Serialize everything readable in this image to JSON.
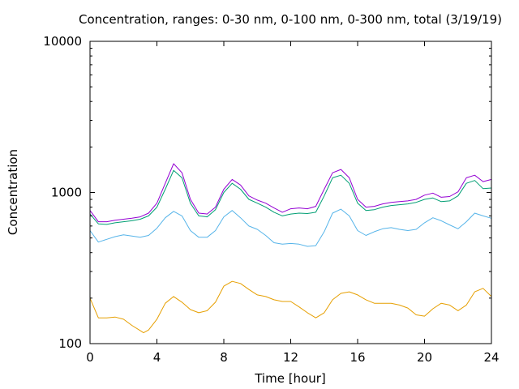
{
  "chart_data": {
    "type": "line",
    "title": "Concentration, ranges: 0-30 nm, 0-100 nm, 0-300 nm, total (3/19/19)",
    "xlabel": "Time [hour]",
    "ylabel": "Concentration",
    "xlim": [
      0,
      24
    ],
    "ylim": [
      100,
      10000
    ],
    "yscale": "log",
    "grid": false,
    "legend": "none",
    "xticks": [
      0,
      4,
      8,
      12,
      16,
      20,
      24
    ],
    "xtick_labels": [
      "0",
      "4",
      "8",
      "12",
      "16",
      "20",
      "24"
    ],
    "yticks": [
      100,
      1000,
      10000
    ],
    "ytick_labels": [
      "100",
      "1000",
      "10000"
    ],
    "series": [
      {
        "color": "#e69f00",
        "x": [
          0,
          0.5,
          1,
          1.5,
          2,
          2.5,
          3,
          3.2,
          3.5,
          4,
          4.5,
          5,
          5.5,
          6,
          6.5,
          7,
          7.5,
          8,
          8.5,
          9,
          9.5,
          10,
          10.5,
          11,
          11.5,
          12,
          12.5,
          13,
          13.5,
          14,
          14.5,
          15,
          15.5,
          16,
          16.5,
          17,
          17.5,
          18,
          18.5,
          19,
          19.5,
          20,
          20.5,
          21,
          21.5,
          22,
          22.5,
          23,
          23.5,
          24
        ],
        "y": [
          200,
          148,
          148,
          150,
          145,
          132,
          122,
          118,
          123,
          145,
          185,
          205,
          188,
          168,
          160,
          165,
          188,
          240,
          258,
          250,
          228,
          210,
          205,
          195,
          190,
          190,
          175,
          160,
          148,
          160,
          195,
          215,
          220,
          210,
          195,
          185,
          185,
          185,
          180,
          172,
          155,
          152,
          170,
          185,
          180,
          165,
          180,
          220,
          232,
          205
        ]
      },
      {
        "color": "#56b4e9",
        "x": [
          0,
          0.5,
          1,
          1.5,
          2,
          2.5,
          3,
          3.5,
          4,
          4.5,
          5,
          5.5,
          6,
          6.5,
          7,
          7.5,
          8,
          8.5,
          9,
          9.5,
          10,
          10.5,
          11,
          11.5,
          12,
          12.5,
          13,
          13.5,
          14,
          14.5,
          15,
          15.5,
          16,
          16.5,
          17,
          17.5,
          18,
          18.5,
          19,
          19.5,
          20,
          20.5,
          21,
          21.5,
          22,
          22.5,
          23,
          23.5,
          24
        ],
        "y": [
          560,
          470,
          490,
          510,
          525,
          515,
          505,
          520,
          580,
          680,
          750,
          700,
          560,
          505,
          505,
          560,
          690,
          760,
          680,
          600,
          570,
          520,
          465,
          455,
          460,
          455,
          440,
          445,
          550,
          730,
          775,
          700,
          560,
          520,
          550,
          575,
          585,
          570,
          560,
          570,
          630,
          680,
          650,
          610,
          575,
          640,
          730,
          700,
          675
        ]
      },
      {
        "color": "#009e73",
        "x": [
          0,
          0.5,
          1,
          1.5,
          2,
          2.5,
          3,
          3.5,
          4,
          4.5,
          5,
          5.5,
          6,
          6.5,
          7,
          7.5,
          8,
          8.5,
          9,
          9.5,
          10,
          10.5,
          11,
          11.5,
          12,
          12.5,
          13,
          13.5,
          14,
          14.5,
          15,
          15.5,
          16,
          16.5,
          17,
          17.5,
          18,
          18.5,
          19,
          19.5,
          20,
          20.5,
          21,
          21.5,
          22,
          22.5,
          23,
          23.5,
          24
        ],
        "y": [
          720,
          620,
          615,
          630,
          640,
          650,
          665,
          700,
          800,
          1050,
          1400,
          1250,
          850,
          700,
          690,
          770,
          1000,
          1150,
          1050,
          900,
          850,
          800,
          740,
          700,
          720,
          730,
          725,
          740,
          950,
          1250,
          1300,
          1150,
          850,
          760,
          770,
          800,
          820,
          830,
          840,
          860,
          900,
          920,
          870,
          880,
          950,
          1150,
          1200,
          1060,
          1070
        ]
      },
      {
        "color": "#9400d3",
        "x": [
          0,
          0.5,
          1,
          1.5,
          2,
          2.5,
          3,
          3.5,
          4,
          4.5,
          5,
          5.5,
          6,
          6.5,
          7,
          7.5,
          8,
          8.5,
          9,
          9.5,
          10,
          10.5,
          11,
          11.5,
          12,
          12.5,
          13,
          13.5,
          14,
          14.5,
          15,
          15.5,
          16,
          16.5,
          17,
          17.5,
          18,
          18.5,
          19,
          19.5,
          20,
          20.5,
          21,
          21.5,
          22,
          22.5,
          23,
          23.5,
          24
        ],
        "y": [
          760,
          640,
          640,
          655,
          665,
          675,
          690,
          730,
          850,
          1150,
          1550,
          1350,
          900,
          730,
          720,
          800,
          1050,
          1220,
          1120,
          950,
          890,
          850,
          790,
          740,
          780,
          790,
          780,
          810,
          1050,
          1350,
          1420,
          1250,
          900,
          800,
          810,
          840,
          860,
          870,
          880,
          900,
          960,
          990,
          930,
          940,
          1010,
          1250,
          1300,
          1180,
          1220
        ]
      }
    ]
  }
}
